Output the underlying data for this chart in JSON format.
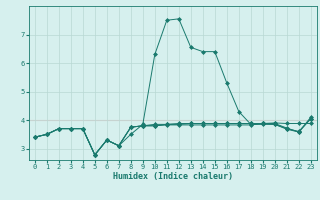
{
  "title": "",
  "xlabel": "Humidex (Indice chaleur)",
  "ylabel": "",
  "background_color": "#d6f0ee",
  "grid_color": "#b8d8d4",
  "pink_grid_color": "#e8c8c8",
  "line_color": "#1a7a6e",
  "x": [
    0,
    1,
    2,
    3,
    4,
    5,
    6,
    7,
    8,
    9,
    10,
    11,
    12,
    13,
    14,
    15,
    16,
    17,
    18,
    19,
    20,
    21,
    22,
    23
  ],
  "line1": [
    3.4,
    3.5,
    3.7,
    3.7,
    3.7,
    2.78,
    3.3,
    3.1,
    3.5,
    3.85,
    6.3,
    7.5,
    7.55,
    6.55,
    6.4,
    6.4,
    5.3,
    4.3,
    3.85,
    3.85,
    3.85,
    3.7,
    3.6,
    4.05
  ],
  "line2": [
    3.4,
    3.5,
    3.7,
    3.7,
    3.7,
    2.78,
    3.3,
    3.1,
    3.75,
    3.8,
    3.8,
    3.83,
    3.83,
    3.83,
    3.83,
    3.83,
    3.83,
    3.83,
    3.83,
    3.88,
    3.9,
    3.88,
    3.88,
    3.88
  ],
  "line3": [
    3.4,
    3.5,
    3.7,
    3.7,
    3.7,
    2.78,
    3.3,
    3.1,
    3.75,
    3.8,
    3.8,
    3.85,
    3.85,
    3.88,
    3.88,
    3.88,
    3.88,
    3.88,
    3.88,
    3.88,
    3.88,
    3.72,
    3.58,
    4.1
  ],
  "line4": [
    3.4,
    3.5,
    3.7,
    3.7,
    3.7,
    2.78,
    3.3,
    3.1,
    3.75,
    3.8,
    3.85,
    3.85,
    3.88,
    3.88,
    3.88,
    3.88,
    3.88,
    3.88,
    3.88,
    3.88,
    3.85,
    3.68,
    3.58,
    4.05
  ],
  "ylim": [
    2.6,
    8.0
  ],
  "xlim": [
    -0.5,
    23.5
  ],
  "yticks": [
    3,
    4,
    5,
    6,
    7
  ],
  "xticks": [
    0,
    1,
    2,
    3,
    4,
    5,
    6,
    7,
    8,
    9,
    10,
    11,
    12,
    13,
    14,
    15,
    16,
    17,
    18,
    19,
    20,
    21,
    22,
    23
  ],
  "marker": "D",
  "markersize": 2.0,
  "linewidth": 0.7,
  "tick_fontsize": 5.0,
  "xlabel_fontsize": 6.0
}
